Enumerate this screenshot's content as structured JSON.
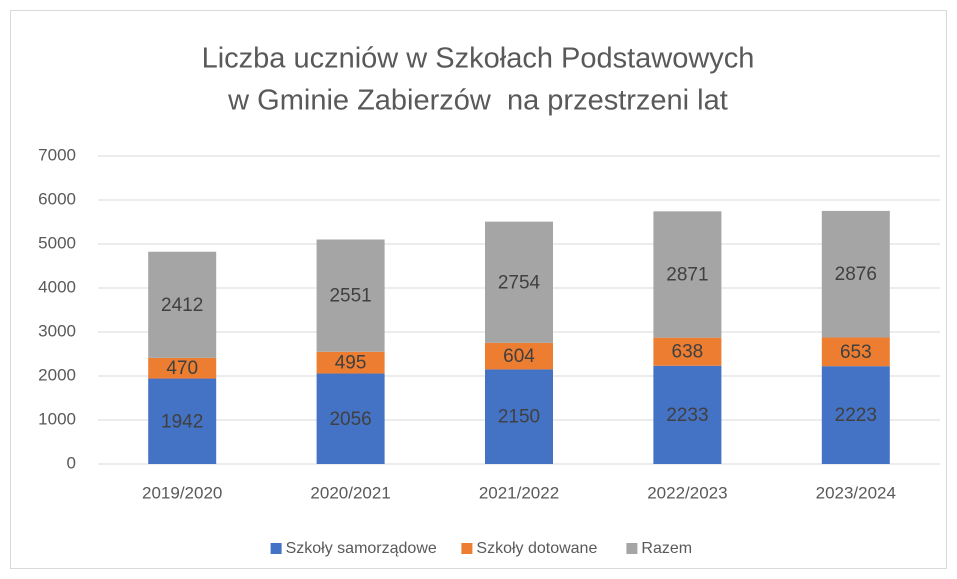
{
  "chart_data": {
    "type": "stacked_bar",
    "title": [
      "Liczba uczniów w Szkołach Podstawowych",
      "w Gminie Zabierzów  na przestrzeni lat"
    ],
    "categories": [
      "2019/2020",
      "2020/2021",
      "2021/2022",
      "2022/2023",
      "2023/2024"
    ],
    "series": [
      {
        "name": "Szkoły samorządowe",
        "color": "#4472c4",
        "values": [
          1942,
          2056,
          2150,
          2233,
          2223
        ]
      },
      {
        "name": "Szkoły dotowane",
        "color": "#ed7d31",
        "values": [
          470,
          495,
          604,
          638,
          653
        ]
      },
      {
        "name": "Razem",
        "color": "#a5a5a5",
        "values": [
          2412,
          2551,
          2754,
          2871,
          2876
        ]
      }
    ],
    "ylim": [
      0,
      7000
    ],
    "yticks": [
      0,
      1000,
      2000,
      3000,
      4000,
      5000,
      6000,
      7000
    ],
    "grid": true,
    "legend": "bottom"
  }
}
